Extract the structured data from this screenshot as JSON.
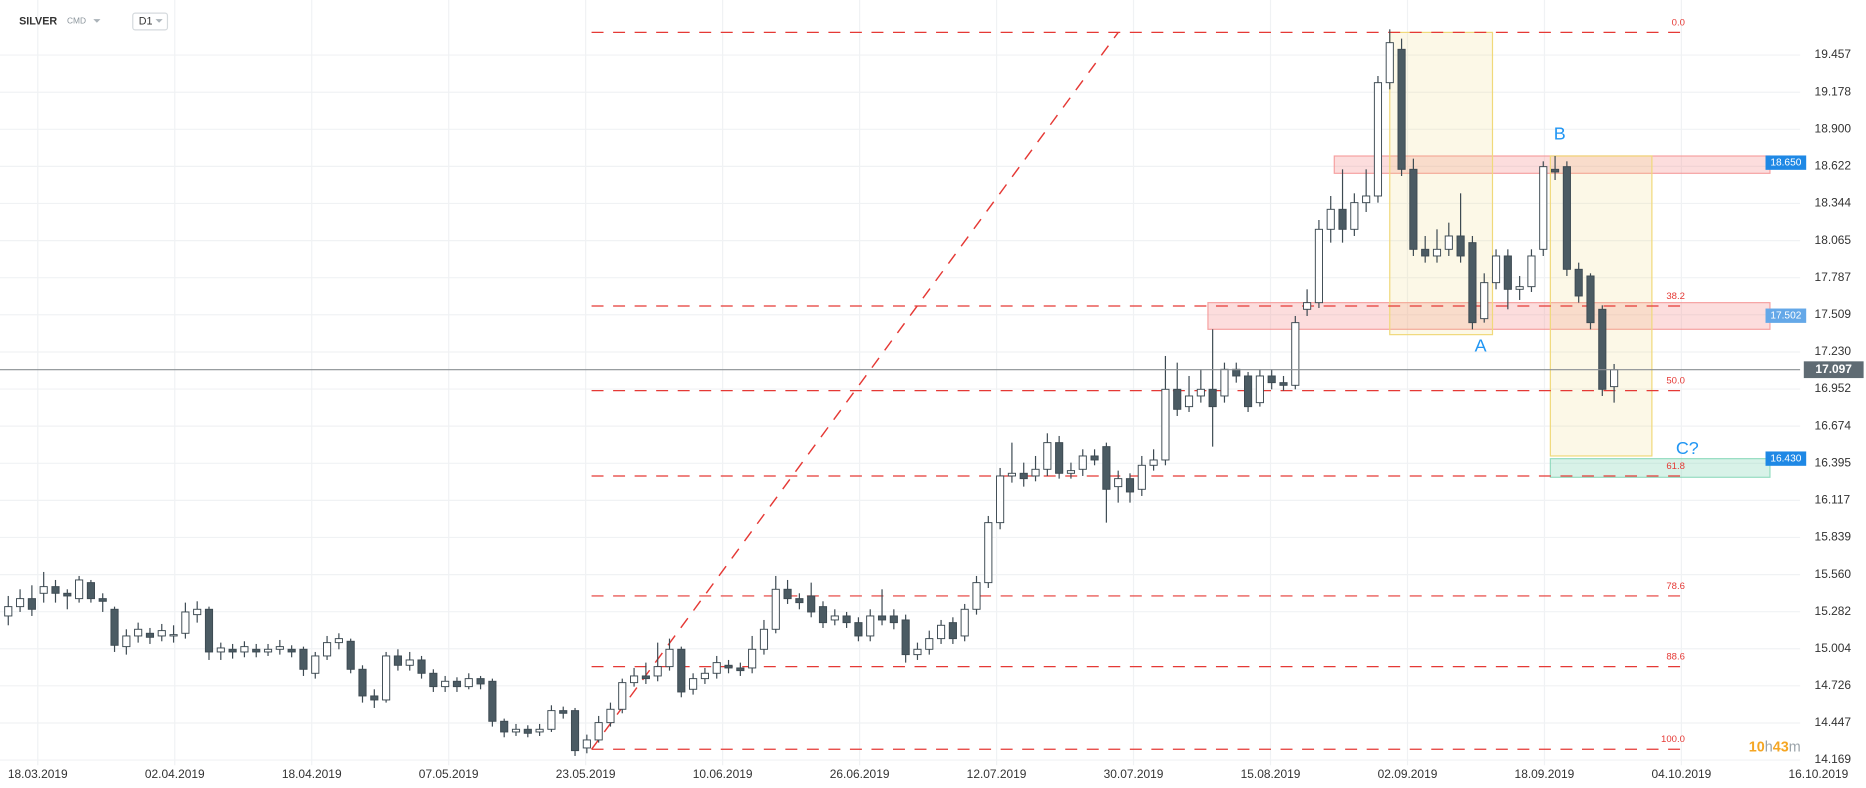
{
  "chart_data": {
    "type": "candlestick",
    "symbol": "SILVER",
    "market": "CMD",
    "interval": "D1",
    "x": [
      0,
      1,
      2,
      3,
      4,
      5,
      6,
      7,
      8,
      9,
      10,
      11,
      12,
      13,
      14,
      15,
      16,
      17,
      18,
      19,
      20,
      21,
      22,
      23,
      24,
      25,
      26,
      27,
      28,
      29,
      30,
      31,
      32,
      33,
      34,
      35,
      36,
      37,
      38,
      39,
      40,
      41,
      42,
      43,
      44,
      45,
      46,
      47,
      48,
      49,
      50,
      51,
      52,
      53,
      54,
      55,
      56,
      57,
      58,
      59,
      60,
      61,
      62,
      63,
      64,
      65,
      66,
      67,
      68,
      69,
      70,
      71,
      72,
      73,
      74,
      75,
      76,
      77,
      78,
      79,
      80,
      81,
      82,
      83,
      84,
      85,
      86,
      87,
      88,
      89,
      90,
      91,
      92,
      93,
      94,
      95,
      96,
      97,
      98,
      99,
      100,
      101,
      102,
      103,
      104,
      105,
      106,
      107,
      108,
      109,
      110,
      111,
      112,
      113,
      114,
      115,
      116,
      117,
      118,
      119,
      120,
      121,
      122,
      123,
      124,
      125,
      126,
      127,
      128,
      129,
      130,
      131,
      132,
      133,
      134,
      135,
      136
    ],
    "open": [
      15.25,
      15.32,
      15.38,
      15.42,
      15.47,
      15.42,
      15.38,
      15.5,
      15.38,
      15.3,
      15.02,
      15.1,
      15.12,
      15.1,
      15.1,
      15.12,
      15.26,
      15.3,
      14.98,
      15.0,
      14.98,
      15.0,
      14.98,
      15.0,
      15.0,
      15.0,
      14.82,
      14.95,
      15.05,
      15.06,
      14.85,
      14.65,
      14.62,
      14.95,
      14.88,
      14.92,
      14.82,
      14.72,
      14.76,
      14.72,
      14.78,
      14.76,
      14.46,
      14.38,
      14.4,
      14.38,
      14.4,
      14.54,
      14.54,
      14.26,
      14.32,
      14.45,
      14.55,
      14.75,
      14.8,
      14.8,
      14.87,
      15.0,
      14.7,
      14.78,
      14.82,
      14.88,
      14.86,
      14.86,
      15.0,
      15.15,
      15.45,
      15.38,
      15.4,
      15.32,
      15.22,
      15.25,
      15.2,
      15.1,
      15.25,
      15.25,
      15.22,
      14.96,
      15.0,
      15.08,
      15.2,
      15.1,
      15.3,
      15.5,
      15.95,
      16.3,
      16.32,
      16.3,
      16.35,
      16.55,
      16.32,
      16.35,
      16.45,
      16.52,
      16.22,
      16.28,
      16.2,
      16.38,
      16.42,
      16.95,
      16.82,
      16.9,
      16.95,
      16.9,
      17.1,
      17.05,
      16.85,
      17.05,
      17.0,
      16.98,
      17.55,
      17.6,
      18.15,
      18.3,
      18.15,
      18.35,
      18.4,
      19.25,
      19.5,
      18.6,
      18.0,
      17.95,
      18.0,
      18.1,
      18.05,
      17.48,
      17.75,
      17.95,
      17.7,
      17.72,
      18.0,
      18.6,
      18.62,
      17.85,
      17.8,
      17.55,
      16.97
    ],
    "high": [
      15.4,
      15.45,
      15.48,
      15.58,
      15.52,
      15.45,
      15.55,
      15.52,
      15.42,
      15.32,
      15.15,
      15.2,
      15.16,
      15.19,
      15.18,
      15.35,
      15.36,
      15.32,
      15.05,
      15.04,
      15.06,
      15.04,
      15.04,
      15.07,
      15.03,
      15.02,
      14.98,
      15.1,
      15.12,
      15.08,
      14.88,
      14.7,
      14.98,
      15.0,
      14.98,
      14.95,
      14.85,
      14.8,
      14.79,
      14.82,
      14.8,
      14.78,
      14.48,
      14.44,
      14.43,
      14.44,
      14.58,
      14.57,
      14.56,
      14.36,
      14.5,
      14.6,
      14.78,
      14.86,
      14.9,
      15.05,
      15.08,
      15.02,
      14.82,
      14.86,
      14.95,
      14.92,
      14.9,
      15.1,
      15.22,
      15.55,
      15.52,
      15.42,
      15.5,
      15.36,
      15.3,
      15.28,
      15.24,
      15.3,
      15.45,
      15.3,
      15.26,
      15.05,
      15.14,
      15.22,
      15.24,
      15.34,
      15.55,
      16.0,
      16.36,
      16.55,
      16.4,
      16.45,
      16.62,
      16.6,
      16.4,
      16.5,
      16.5,
      16.55,
      16.34,
      16.32,
      16.45,
      16.5,
      17.2,
      17.15,
      17.05,
      17.1,
      17.4,
      17.15,
      17.15,
      17.08,
      17.1,
      17.1,
      17.05,
      17.5,
      17.7,
      18.22,
      18.4,
      18.6,
      18.42,
      18.6,
      19.3,
      19.65,
      19.58,
      18.68,
      18.1,
      18.15,
      18.2,
      18.42,
      18.1,
      17.82,
      18.0,
      18.0,
      17.8,
      18.0,
      18.66,
      18.7,
      18.66,
      17.9,
      17.82,
      17.58,
      17.14
    ],
    "low": [
      15.18,
      15.28,
      15.25,
      15.35,
      15.35,
      15.3,
      15.35,
      15.35,
      15.28,
      14.98,
      14.96,
      15.05,
      15.04,
      15.06,
      15.05,
      15.08,
      15.2,
      14.92,
      14.92,
      14.93,
      14.94,
      14.94,
      14.95,
      14.96,
      14.94,
      14.8,
      14.78,
      14.92,
      15.0,
      14.82,
      14.6,
      14.56,
      14.6,
      14.84,
      14.84,
      14.78,
      14.68,
      14.68,
      14.68,
      14.7,
      14.7,
      14.42,
      14.34,
      14.35,
      14.34,
      14.35,
      14.38,
      14.48,
      14.2,
      14.22,
      14.3,
      14.42,
      14.52,
      14.72,
      14.74,
      14.76,
      14.84,
      14.64,
      14.66,
      14.74,
      14.78,
      14.82,
      14.8,
      14.82,
      14.96,
      15.12,
      15.34,
      15.3,
      15.24,
      15.16,
      15.18,
      15.16,
      15.06,
      15.06,
      15.18,
      15.15,
      14.9,
      14.92,
      14.96,
      15.04,
      15.04,
      15.06,
      15.26,
      15.46,
      15.9,
      16.25,
      16.22,
      16.26,
      16.3,
      16.28,
      16.28,
      16.3,
      16.38,
      15.95,
      16.1,
      16.1,
      16.15,
      16.34,
      16.38,
      16.75,
      16.78,
      16.85,
      16.52,
      16.85,
      17.0,
      16.78,
      16.82,
      16.95,
      16.94,
      16.95,
      17.5,
      17.56,
      18.05,
      18.05,
      18.1,
      18.28,
      18.35,
      19.2,
      18.55,
      17.95,
      17.9,
      17.9,
      17.95,
      17.9,
      17.4,
      17.45,
      17.7,
      17.55,
      17.62,
      17.68,
      17.95,
      18.52,
      17.8,
      17.6,
      17.4,
      16.9,
      16.85
    ],
    "close": [
      15.32,
      15.38,
      15.3,
      15.47,
      15.42,
      15.4,
      15.52,
      15.38,
      15.36,
      15.03,
      15.1,
      15.15,
      15.09,
      15.14,
      15.11,
      15.28,
      15.3,
      14.98,
      15.01,
      14.98,
      15.02,
      14.98,
      15.0,
      15.02,
      14.98,
      14.85,
      14.95,
      15.05,
      15.08,
      14.85,
      14.65,
      14.62,
      14.95,
      14.88,
      14.92,
      14.82,
      14.72,
      14.76,
      14.72,
      14.78,
      14.74,
      14.46,
      14.38,
      14.4,
      14.37,
      14.4,
      14.54,
      14.52,
      14.24,
      14.32,
      14.45,
      14.55,
      14.75,
      14.8,
      14.78,
      14.87,
      15.0,
      14.68,
      14.78,
      14.82,
      14.9,
      14.86,
      14.84,
      15.0,
      15.15,
      15.45,
      15.38,
      15.35,
      15.28,
      15.2,
      15.25,
      15.2,
      15.1,
      15.25,
      15.22,
      15.2,
      14.96,
      15.0,
      15.08,
      15.18,
      15.08,
      15.3,
      15.5,
      15.95,
      16.3,
      16.32,
      16.28,
      16.35,
      16.55,
      16.32,
      16.34,
      16.45,
      16.42,
      16.2,
      16.28,
      16.18,
      16.38,
      16.42,
      16.95,
      16.8,
      16.9,
      16.95,
      16.82,
      17.1,
      17.05,
      16.82,
      17.05,
      17.0,
      16.98,
      17.45,
      17.6,
      18.15,
      18.3,
      18.15,
      18.35,
      18.4,
      19.25,
      19.55,
      18.6,
      18.0,
      17.95,
      18.0,
      18.1,
      17.95,
      17.45,
      17.75,
      17.95,
      17.7,
      17.72,
      17.95,
      18.62,
      18.58,
      17.85,
      17.65,
      17.45,
      16.95,
      17.097
    ],
    "colors": {
      "up": "#ffffff",
      "down": "#4b5b63",
      "edge": "#3d4a52"
    },
    "xlim": [
      -0.7,
      154.8
    ],
    "xticks": [
      {
        "value": 2.5,
        "label": "18.03.2019"
      },
      {
        "value": 14.1,
        "label": "02.04.2019"
      },
      {
        "value": 25.7,
        "label": "18.04.2019"
      },
      {
        "value": 37.3,
        "label": "07.05.2019"
      },
      {
        "value": 48.9,
        "label": "23.05.2019"
      },
      {
        "value": 60.5,
        "label": "10.06.2019"
      },
      {
        "value": 72.1,
        "label": "26.06.2019"
      },
      {
        "value": 83.7,
        "label": "12.07.2019"
      },
      {
        "value": 95.3,
        "label": "30.07.2019"
      },
      {
        "value": 106.9,
        "label": "15.08.2019"
      },
      {
        "value": 118.5,
        "label": "02.09.2019"
      },
      {
        "value": 130.1,
        "label": "18.09.2019"
      },
      {
        "value": 141.7,
        "label": "04.10.2019"
      },
      {
        "value": 153.3,
        "label": "16.10.2019"
      }
    ],
    "ylim": [
      14.13,
      19.87
    ],
    "yticks": [
      19.457,
      19.178,
      {
        "value": 18.9,
        "label": "18.900"
      },
      18.622,
      18.344,
      18.065,
      17.787,
      17.509,
      {
        "value": 17.23,
        "label": "17.230"
      },
      16.952,
      16.674,
      16.395,
      16.117,
      15.839,
      {
        "value": 15.56,
        "label": "15.560"
      },
      15.282,
      15.004,
      14.726,
      14.447,
      14.169
    ],
    "grid": true,
    "current_price": 17.097,
    "fib_color": "#e53935",
    "fib_range": [
      49.4,
      142.2
    ],
    "fib_levels": [
      {
        "label": "0.0",
        "price": 19.627
      },
      {
        "label": "38.2",
        "price": 17.575
      },
      {
        "label": "50.0",
        "price": 16.94
      },
      {
        "label": "61.8",
        "price": 16.3
      },
      {
        "label": "78.6",
        "price": 15.4
      },
      {
        "label": "88.6",
        "price": 14.87
      },
      {
        "label": "100.0",
        "price": 14.25
      }
    ],
    "trend_line": {
      "x": [
        49.4,
        94.0
      ],
      "y": [
        14.25,
        19.627
      ]
    },
    "zones": [
      {
        "x0": 112.3,
        "x1": 149.2,
        "top": 18.7,
        "bottom": 18.57,
        "color": "#f48f8f"
      },
      {
        "x0": 101.6,
        "x1": 149.2,
        "top": 17.6,
        "bottom": 17.4,
        "color": "#f48f8f"
      },
      {
        "x0": 130.6,
        "x1": 149.2,
        "top": 16.43,
        "bottom": 16.29,
        "color": "#7fd4b4"
      }
    ],
    "boxes": [
      {
        "x0": 117.0,
        "x1": 125.7,
        "top": 19.627,
        "bottom": 17.36,
        "color": "#f0d97a"
      },
      {
        "x0": 130.6,
        "x1": 139.2,
        "top": 18.7,
        "bottom": 16.45,
        "color": "#f0d97a"
      }
    ],
    "price_tags": [
      {
        "value": 18.65,
        "label": "18.650",
        "color": "#1e88e5"
      },
      {
        "value": 17.502,
        "label": "17.502",
        "color": "#64a8e8"
      },
      {
        "value": 16.43,
        "label": "16.430",
        "color": "#1e88e5"
      }
    ],
    "wave_labels": [
      {
        "text": "A",
        "x": 124.7,
        "y": 17.27
      },
      {
        "text": "B",
        "x": 131.4,
        "y": 18.86
      },
      {
        "text": "C?",
        "x": 142.2,
        "y": 16.5
      }
    ],
    "timer": [
      "10",
      "h",
      "43",
      "m"
    ]
  }
}
